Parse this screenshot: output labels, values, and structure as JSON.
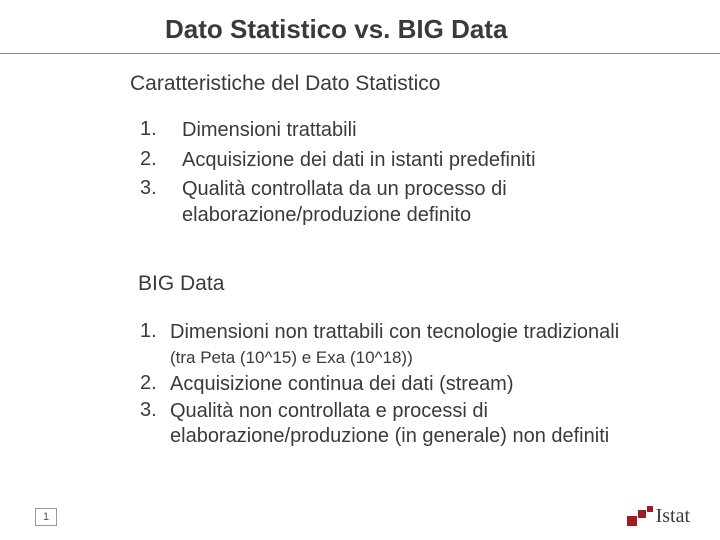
{
  "title": "Dato Statistico vs. BIG Data",
  "section1": {
    "heading": "Caratteristiche del Dato Statistico",
    "items": [
      {
        "num": "1.",
        "text": "Dimensioni trattabili"
      },
      {
        "num": "2.",
        "text": "Acquisizione dei dati  in istanti predefiniti"
      },
      {
        "num": "3.",
        "text": "Qualità controllata da un processo di elaborazione/produzione definito"
      }
    ]
  },
  "section2": {
    "heading": "BIG Data",
    "items": [
      {
        "num": "1.",
        "text": "Dimensioni non trattabili con tecnologie tradizionali",
        "sub": "(tra Peta (10^15) e Exa (10^18))"
      },
      {
        "num": "2.",
        "text": "Acquisizione continua dei dati (stream)"
      },
      {
        "num": "3.",
        "text": "Qualità non controllata e processi di elaborazione/produzione (in generale) non definiti"
      }
    ]
  },
  "pageNumber": "1",
  "logoText": "Istat",
  "colors": {
    "text": "#3a3a3a",
    "accent": "#a11d21",
    "hr": "#888888",
    "background": "#ffffff"
  },
  "fonts": {
    "title_size": 26,
    "heading_size": 21,
    "body_size": 20,
    "sub_size": 17
  }
}
